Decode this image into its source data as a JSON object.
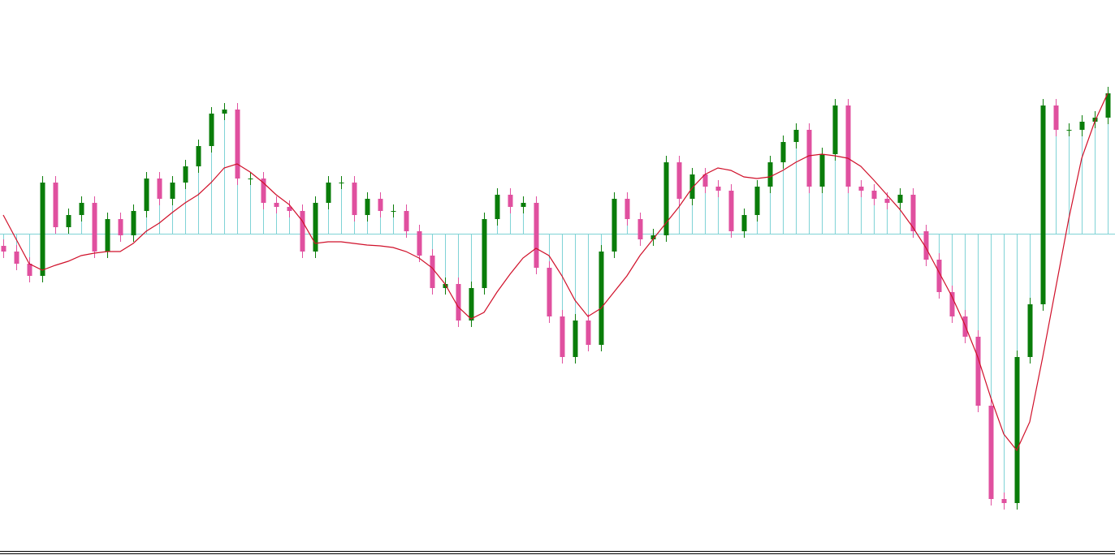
{
  "chart_data": {
    "type": "candlestick",
    "ylim": [
      -395,
      288
    ],
    "up_color": "#0a7d0a",
    "down_color": "#e0509f",
    "open": [
      -15,
      -22,
      -37,
      -52,
      63,
      8,
      23,
      38,
      -22,
      18,
      -2,
      28,
      68,
      43,
      63,
      83,
      108,
      148,
      153,
      68,
      68,
      38,
      33,
      28,
      -22,
      38,
      63,
      63,
      23,
      43,
      28,
      28,
      3,
      -27,
      -67,
      -62,
      -107,
      -67,
      18,
      48,
      33,
      38,
      -42,
      -102,
      -152,
      -107,
      -137,
      -22,
      43,
      18,
      -7,
      -2,
      88,
      43,
      73,
      58,
      53,
      3,
      23,
      58,
      88,
      113,
      128,
      58,
      98,
      158,
      58,
      53,
      43,
      38,
      48,
      3,
      -32,
      -72,
      -102,
      -127,
      -212,
      -327,
      -332,
      -152,
      -87,
      158,
      128,
      128,
      138,
      143
    ],
    "high": [
      -7,
      -14,
      -29,
      71,
      71,
      31,
      46,
      46,
      26,
      26,
      36,
      76,
      76,
      71,
      91,
      116,
      156,
      161,
      161,
      76,
      76,
      46,
      41,
      36,
      46,
      71,
      71,
      71,
      51,
      51,
      36,
      36,
      11,
      -19,
      -54,
      -54,
      -59,
      26,
      56,
      56,
      46,
      46,
      -34,
      -94,
      -99,
      -99,
      -14,
      51,
      51,
      26,
      6,
      96,
      96,
      81,
      81,
      66,
      61,
      31,
      66,
      96,
      121,
      136,
      136,
      106,
      166,
      166,
      66,
      61,
      51,
      56,
      56,
      11,
      -24,
      -64,
      -94,
      -119,
      -204,
      -319,
      -144,
      -79,
      166,
      166,
      136,
      146,
      151,
      181
    ],
    "low": [
      -30,
      -45,
      -60,
      -60,
      0,
      0,
      15,
      -30,
      -30,
      -10,
      -10,
      20,
      35,
      35,
      55,
      75,
      100,
      140,
      60,
      60,
      30,
      25,
      20,
      -30,
      -30,
      30,
      55,
      15,
      15,
      20,
      20,
      -5,
      -35,
      -75,
      -75,
      -115,
      -115,
      -75,
      10,
      25,
      25,
      -50,
      -110,
      -160,
      -160,
      -145,
      -145,
      -30,
      10,
      -15,
      -15,
      -10,
      35,
      35,
      50,
      45,
      -5,
      -5,
      15,
      50,
      80,
      105,
      50,
      50,
      90,
      50,
      45,
      35,
      30,
      30,
      -5,
      -40,
      -80,
      -110,
      -135,
      -220,
      -335,
      -340,
      -340,
      -160,
      -95,
      120,
      120,
      120,
      130,
      135
    ],
    "close": [
      -22,
      -37,
      -52,
      63,
      8,
      23,
      38,
      -22,
      18,
      -2,
      28,
      68,
      43,
      63,
      83,
      108,
      148,
      153,
      68,
      68,
      38,
      33,
      28,
      -22,
      38,
      63,
      63,
      23,
      43,
      28,
      28,
      3,
      -27,
      -67,
      -62,
      -107,
      -67,
      18,
      48,
      33,
      38,
      -42,
      -102,
      -152,
      -107,
      -137,
      -22,
      43,
      18,
      -7,
      -2,
      88,
      43,
      73,
      58,
      53,
      3,
      23,
      58,
      88,
      113,
      128,
      58,
      98,
      158,
      58,
      53,
      43,
      38,
      48,
      3,
      -32,
      -72,
      -102,
      -127,
      -212,
      -327,
      -332,
      -152,
      -87,
      158,
      128,
      128,
      138,
      143,
      173
    ],
    "histogram": {
      "color": "#7fd3d6",
      "values": [
        -22,
        -37,
        -52,
        63,
        8,
        23,
        38,
        -22,
        18,
        -2,
        28,
        68,
        43,
        63,
        83,
        108,
        148,
        153,
        68,
        68,
        38,
        33,
        28,
        -22,
        38,
        63,
        63,
        23,
        43,
        28,
        28,
        3,
        -27,
        -67,
        -62,
        -107,
        -67,
        18,
        48,
        33,
        38,
        -42,
        -102,
        -152,
        -107,
        -137,
        -22,
        43,
        18,
        -7,
        -2,
        88,
        43,
        73,
        58,
        53,
        3,
        23,
        58,
        88,
        113,
        128,
        58,
        98,
        158,
        58,
        53,
        43,
        38,
        48,
        3,
        -32,
        -72,
        -102,
        -127,
        -212,
        -327,
        -332,
        -152,
        -87,
        158,
        128,
        128,
        138,
        143,
        173
      ]
    },
    "moving_average": {
      "color": "#d0102a",
      "values": [
        23,
        -7,
        -37,
        -45,
        -39,
        -34,
        -27,
        -24,
        -22,
        -22,
        -12,
        3,
        13,
        26,
        38,
        48,
        63,
        81,
        86,
        76,
        63,
        48,
        36,
        16,
        -12,
        -10,
        -10,
        -12,
        -14,
        -15,
        -17,
        -22,
        -30,
        -42,
        -62,
        -90,
        -105,
        -97,
        -72,
        -50,
        -30,
        -18,
        -27,
        -52,
        -82,
        -102,
        -92,
        -72,
        -52,
        -27,
        -7,
        13,
        33,
        56,
        73,
        81,
        78,
        70,
        68,
        70,
        78,
        88,
        96,
        98,
        96,
        93,
        83,
        66,
        48,
        30,
        8,
        -17,
        -47,
        -77,
        -112,
        -152,
        -202,
        -247,
        -267,
        -232,
        -152,
        -67,
        18,
        93,
        138,
        173
      ]
    }
  }
}
